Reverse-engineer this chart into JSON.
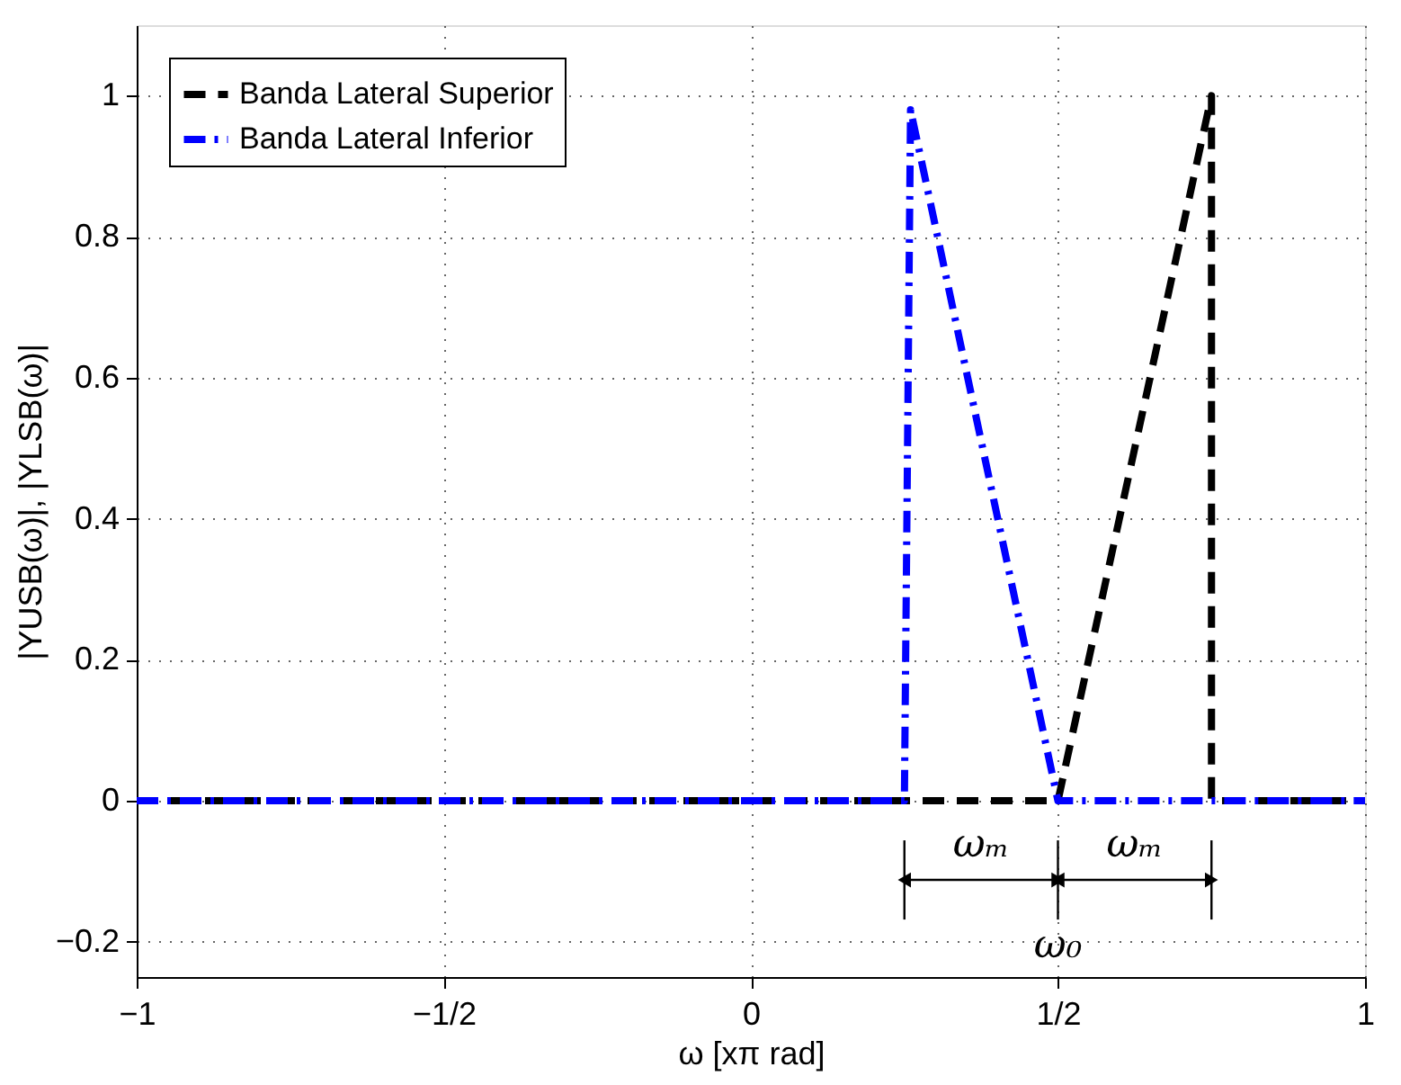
{
  "chart_data": {
    "type": "line",
    "xlabel": "ω [xπ rad]",
    "ylabel": "|YUSB(ω)|, |YLSB(ω)|",
    "series": [
      {
        "name": "Banda Lateral Superior",
        "color": "#000000",
        "line_style": "dashed",
        "x": [
          -1,
          0.5,
          0.75,
          0.75,
          1
        ],
        "values": [
          0,
          0,
          1,
          0,
          0
        ]
      },
      {
        "name": "Banda Lateral Inferior",
        "color": "#0000ff",
        "line_style": "dashdot",
        "x": [
          -1,
          0.25,
          0.26,
          0.5,
          1
        ],
        "values": [
          0,
          0,
          0.98,
          0,
          0
        ]
      }
    ],
    "xlim": [
      -1,
      1
    ],
    "ylim": [
      -0.25,
      1.1
    ],
    "xticks": [
      {
        "value": -1,
        "label": "−1"
      },
      {
        "value": -0.5,
        "label": "−1/2"
      },
      0,
      {
        "value": 0.5,
        "label": "1/2"
      },
      1
    ],
    "yticks": [
      {
        "value": -0.2,
        "label": "−0.2"
      },
      0,
      0.2,
      0.4,
      0.6,
      0.8,
      1
    ],
    "annotations": [
      "ωₘ",
      "ωₘ",
      "ω₀"
    ],
    "grid": true,
    "legend": "top left",
    "marker": "none"
  }
}
